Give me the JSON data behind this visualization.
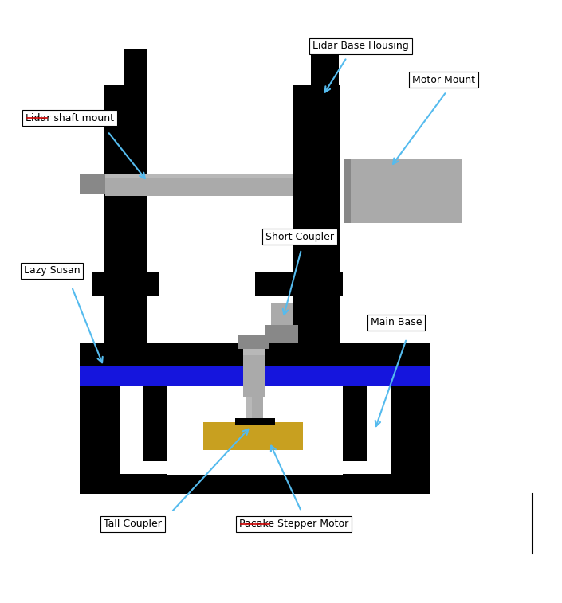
{
  "colors": {
    "black": "#000000",
    "gray": "#909090",
    "light_gray": "#b8b8b8",
    "silver": "#aaaaaa",
    "dark_silver": "#888888",
    "blue": "#1515dd",
    "gold": "#c8a020",
    "arrow": "#55bbee",
    "white": "#ffffff",
    "red": "#cc0000"
  },
  "labels": {
    "lidar_base_housing": "Lidar Base Housing",
    "motor_mount": "Motor Mount",
    "lidar_shaft_mount": "Lidar shaft mount",
    "short_coupler": "Short Coupler",
    "lazy_susan": "Lazy Susan",
    "main_base": "Main Base",
    "tall_coupler": "Tall Coupler",
    "pancake_stepper": "Pacake Stepper Motor"
  }
}
